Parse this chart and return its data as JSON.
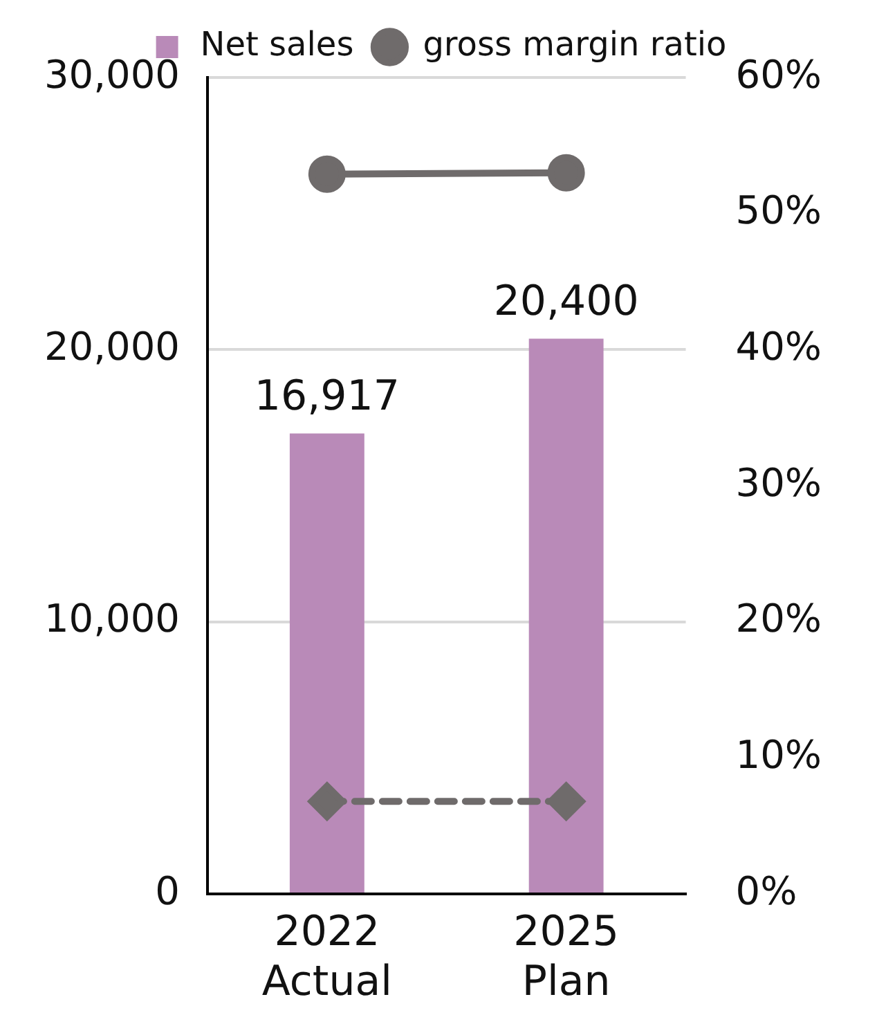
{
  "chart_data": {
    "type": "bar",
    "categories": [
      "2022\nActual",
      "2025\nPlan"
    ],
    "series": [
      {
        "name": "Net sales",
        "color": "#b98ab8",
        "values": [
          16917,
          20400
        ],
        "value_labels": [
          "16,917",
          "20,400"
        ]
      },
      {
        "name": "gross margin ratio",
        "type": "line",
        "axis": "y2",
        "color": "#6f6b6b",
        "values": [
          52.9,
          53.0
        ],
        "marker": "circle",
        "line_style": "solid"
      },
      {
        "type": "line",
        "axis": "y2",
        "color": "#6f6b6b",
        "values": [
          6.8,
          6.8
        ],
        "marker": "diamond",
        "line_style": "dashed"
      }
    ],
    "ylim": [
      0,
      30000
    ],
    "yticks": [
      0,
      {
        "value": 10000,
        "label": "10,000"
      },
      {
        "value": 20000,
        "label": "20,000"
      },
      {
        "value": 30000,
        "label": "30,000"
      }
    ],
    "y2lim": [
      0,
      60
    ],
    "y2ticks": [
      {
        "value": 0,
        "label": "0%"
      },
      {
        "value": 10,
        "label": "10%"
      },
      {
        "value": 20,
        "label": "20%"
      },
      {
        "value": 30,
        "label": "30%"
      },
      {
        "value": 40,
        "label": "40%"
      },
      {
        "value": 50,
        "label": "50%"
      },
      {
        "value": 60,
        "label": "60%"
      }
    ],
    "grid": "y",
    "legend": "top"
  }
}
